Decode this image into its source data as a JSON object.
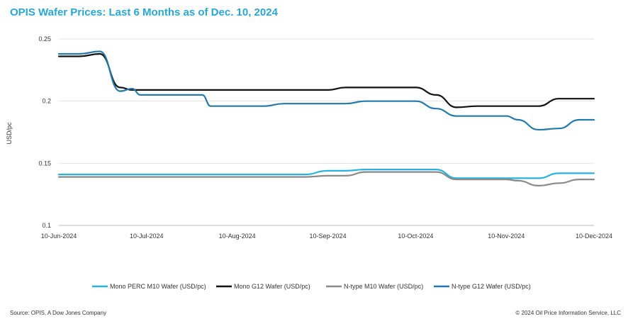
{
  "title": "OPIS Wafer Prices: Last 6 Months as of Dec. 10, 2024",
  "source": "Source: OPIS, A Dow Jones Company",
  "copyright": "© 2024 Oil Price Information Service, LLC",
  "chart_data": {
    "type": "line",
    "title": "OPIS Wafer Prices: Last 6 Months as of Dec. 10, 2024",
    "xlabel": "",
    "ylabel": "USD/pc",
    "ylim": [
      0.1,
      0.25
    ],
    "yticks": [
      "0.1",
      "0.15",
      "0.2",
      "0.25"
    ],
    "xticks": [
      "10-Jun-2024",
      "10-Jul-2024",
      "10-Aug-2024",
      "10-Sep-2024",
      "10-Oct-2024",
      "10-Nov-2024",
      "10-Dec-2024"
    ],
    "grid": true,
    "legend_position": "bottom",
    "x": [
      "2024-06-10",
      "2024-06-17",
      "2024-06-24",
      "2024-07-01",
      "2024-07-05",
      "2024-07-08",
      "2024-07-10",
      "2024-07-15",
      "2024-07-22",
      "2024-07-29",
      "2024-08-01",
      "2024-08-05",
      "2024-08-10",
      "2024-08-19",
      "2024-08-26",
      "2024-09-02",
      "2024-09-10",
      "2024-09-16",
      "2024-09-23",
      "2024-09-30",
      "2024-10-10",
      "2024-10-17",
      "2024-10-24",
      "2024-10-31",
      "2024-11-10",
      "2024-11-14",
      "2024-11-21",
      "2024-11-28",
      "2024-12-05",
      "2024-12-10"
    ],
    "series": [
      {
        "name": "Mono PERC M10 Wafer (USD/pc)",
        "color": "#2bb1dd",
        "values": [
          0.141,
          0.141,
          0.141,
          0.141,
          0.141,
          0.141,
          0.141,
          0.141,
          0.141,
          0.141,
          0.141,
          0.141,
          0.141,
          0.141,
          0.141,
          0.141,
          0.144,
          0.144,
          0.145,
          0.145,
          0.145,
          0.145,
          0.138,
          0.138,
          0.138,
          0.138,
          0.138,
          0.142,
          0.142,
          0.142
        ]
      },
      {
        "name": "Mono G12 Wafer (USD/pc)",
        "color": "#111111",
        "values": [
          0.236,
          0.236,
          0.238,
          0.211,
          0.209,
          0.209,
          0.209,
          0.209,
          0.209,
          0.209,
          0.209,
          0.209,
          0.209,
          0.209,
          0.209,
          0.209,
          0.209,
          0.211,
          0.211,
          0.211,
          0.211,
          0.205,
          0.195,
          0.196,
          0.196,
          0.196,
          0.196,
          0.202,
          0.202,
          0.202
        ]
      },
      {
        "name": "N-type M10 Wafer (USD/pc)",
        "color": "#8a8a8a",
        "values": [
          0.139,
          0.139,
          0.139,
          0.139,
          0.139,
          0.139,
          0.139,
          0.139,
          0.139,
          0.139,
          0.139,
          0.139,
          0.139,
          0.139,
          0.139,
          0.139,
          0.14,
          0.14,
          0.143,
          0.143,
          0.143,
          0.143,
          0.137,
          0.137,
          0.137,
          0.136,
          0.132,
          0.134,
          0.137,
          0.137
        ]
      },
      {
        "name": "N-type G12 Wafer (USD/pc)",
        "color": "#2479a8",
        "values": [
          0.238,
          0.238,
          0.24,
          0.208,
          0.21,
          0.205,
          0.205,
          0.205,
          0.205,
          0.205,
          0.196,
          0.196,
          0.196,
          0.196,
          0.198,
          0.198,
          0.198,
          0.198,
          0.2,
          0.2,
          0.2,
          0.194,
          0.188,
          0.188,
          0.188,
          0.185,
          0.177,
          0.178,
          0.185,
          0.185
        ]
      }
    ]
  }
}
